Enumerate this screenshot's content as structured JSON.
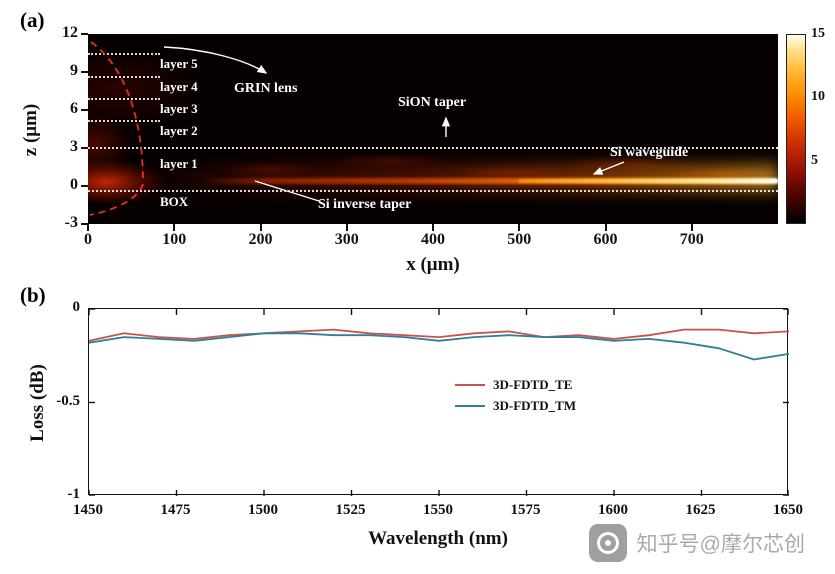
{
  "figure": {
    "panel_a_label": "(a)",
    "panel_b_label": "(b)"
  },
  "panel_a": {
    "type": "heatmap",
    "xlabel": "x (μm)",
    "ylabel": "z (μm)",
    "x_ticks": [
      "0",
      "100",
      "200",
      "300",
      "400",
      "500",
      "600",
      "700"
    ],
    "y_ticks": [
      "12",
      "9",
      "6",
      "3",
      "0",
      "-3"
    ],
    "colorbar": {
      "ticks": [
        "15",
        "10",
        "5"
      ],
      "range": [
        0,
        15
      ]
    },
    "annotations": {
      "layer5": "layer 5",
      "layer4": "layer 4",
      "layer3": "layer 3",
      "layer2": "layer 2",
      "layer1": "layer 1",
      "box": "BOX",
      "grin_lens": "GRIN lens",
      "sion_taper": "SiON taper",
      "si_waveguide": "Si waveguide",
      "si_inverse_taper": "Si inverse taper"
    }
  },
  "chart_data": {
    "type": "line",
    "title": "",
    "xlabel": "Wavelength (nm)",
    "ylabel": "Loss (dB)",
    "xlim": [
      1450,
      1650
    ],
    "ylim": [
      -1,
      0
    ],
    "x_ticks": [
      1450,
      1475,
      1500,
      1525,
      1550,
      1575,
      1600,
      1625,
      1650
    ],
    "y_ticks": [
      0,
      -0.5,
      -1
    ],
    "grid": false,
    "legend_position": "center",
    "series": [
      {
        "name": "3D-FDTD_TE",
        "color": "#c8524d",
        "x": [
          1450,
          1460,
          1470,
          1480,
          1490,
          1500,
          1510,
          1520,
          1530,
          1540,
          1550,
          1560,
          1570,
          1580,
          1590,
          1600,
          1610,
          1620,
          1630,
          1640,
          1650
        ],
        "y": [
          -0.17,
          -0.13,
          -0.15,
          -0.16,
          -0.14,
          -0.13,
          -0.12,
          -0.11,
          -0.13,
          -0.14,
          -0.15,
          -0.13,
          -0.12,
          -0.15,
          -0.14,
          -0.16,
          -0.14,
          -0.11,
          -0.11,
          -0.13,
          -0.12
        ]
      },
      {
        "name": "3D-FDTD_TM",
        "color": "#2f7f96",
        "x": [
          1450,
          1460,
          1470,
          1480,
          1490,
          1500,
          1510,
          1520,
          1530,
          1540,
          1550,
          1560,
          1570,
          1580,
          1590,
          1600,
          1610,
          1620,
          1630,
          1640,
          1650
        ],
        "y": [
          -0.18,
          -0.15,
          -0.16,
          -0.17,
          -0.15,
          -0.13,
          -0.13,
          -0.14,
          -0.14,
          -0.15,
          -0.17,
          -0.15,
          -0.14,
          -0.15,
          -0.15,
          -0.17,
          -0.16,
          -0.18,
          -0.21,
          -0.27,
          -0.24
        ]
      }
    ]
  },
  "watermark": {
    "text": "知乎号@摩尔芯创"
  }
}
